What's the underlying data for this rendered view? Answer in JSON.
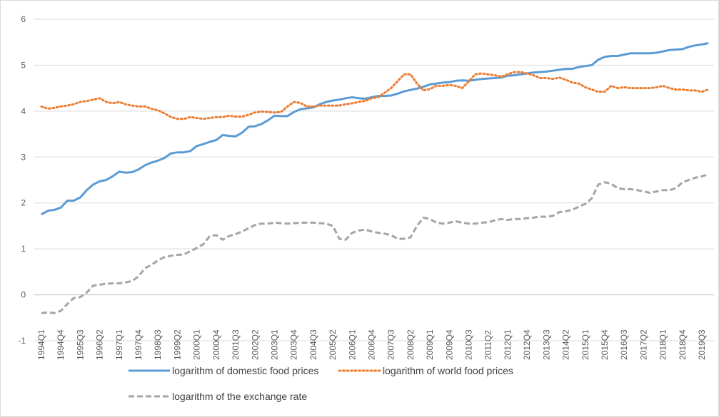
{
  "chart_data": {
    "type": "line",
    "categories": [
      "1994Q1",
      null,
      null,
      "1994Q4",
      null,
      null,
      "1995Q3",
      null,
      null,
      "1996Q2",
      null,
      null,
      "1997Q1",
      null,
      null,
      "1997Q4",
      null,
      null,
      "1998Q3",
      null,
      null,
      "1999Q2",
      null,
      null,
      "2000Q1",
      null,
      null,
      "2000Q4",
      null,
      null,
      "2001Q3",
      null,
      null,
      "2002Q2",
      null,
      null,
      "2003Q1",
      null,
      null,
      "2003Q4",
      null,
      null,
      "2004Q3",
      null,
      null,
      "2005Q2",
      null,
      null,
      "2006Q1",
      null,
      null,
      "2006Q4",
      null,
      null,
      "2007Q3",
      null,
      null,
      "2008Q2",
      null,
      null,
      "2009Q1",
      null,
      null,
      "2009Q4",
      null,
      null,
      "2010Q3",
      null,
      null,
      "2011Q2",
      null,
      null,
      "2012Q1",
      null,
      null,
      "2012Q4",
      null,
      null,
      "2013Q3",
      null,
      null,
      "2014Q2",
      null,
      null,
      "2015Q1",
      null,
      null,
      "2015Q4",
      null,
      null,
      "2016Q3",
      null,
      null,
      "2017Q2",
      null,
      null,
      "2018Q1",
      null,
      null,
      "2018Q4",
      null,
      null,
      "2019Q3",
      null
    ],
    "series": [
      {
        "name": "logarithm of domestic food prices",
        "color": "#5b9bd5",
        "style": "solid",
        "values": [
          1.75,
          1.83,
          1.85,
          1.9,
          2.05,
          2.05,
          2.12,
          2.28,
          2.4,
          2.47,
          2.5,
          2.58,
          2.68,
          2.66,
          2.67,
          2.73,
          2.82,
          2.88,
          2.92,
          2.98,
          3.08,
          3.1,
          3.1,
          3.13,
          3.24,
          3.28,
          3.33,
          3.37,
          3.48,
          3.46,
          3.45,
          3.53,
          3.66,
          3.67,
          3.72,
          3.8,
          3.9,
          3.89,
          3.89,
          3.98,
          4.04,
          4.06,
          4.08,
          4.15,
          4.2,
          4.23,
          4.25,
          4.28,
          4.3,
          4.28,
          4.27,
          4.3,
          4.33,
          4.33,
          4.34,
          4.38,
          4.43,
          4.46,
          4.49,
          4.53,
          4.58,
          4.6,
          4.62,
          4.63,
          4.66,
          4.67,
          4.66,
          4.68,
          4.7,
          4.71,
          4.72,
          4.73,
          4.77,
          4.78,
          4.8,
          4.82,
          4.84,
          4.85,
          4.86,
          4.88,
          4.9,
          4.92,
          4.92,
          4.96,
          4.98,
          5.0,
          5.12,
          5.18,
          5.2,
          5.2,
          5.23,
          5.26,
          5.26,
          5.26,
          5.26,
          5.27,
          5.3,
          5.33,
          5.34,
          5.35,
          5.4,
          5.43,
          5.45,
          5.48
        ]
      },
      {
        "name": "logarithm of world food prices",
        "color": "#ed7d31",
        "style": "dotted",
        "values": [
          4.1,
          4.05,
          4.07,
          4.1,
          4.12,
          4.15,
          4.2,
          4.22,
          4.25,
          4.28,
          4.2,
          4.17,
          4.2,
          4.15,
          4.12,
          4.1,
          4.1,
          4.05,
          4.02,
          3.95,
          3.87,
          3.83,
          3.83,
          3.87,
          3.85,
          3.83,
          3.85,
          3.87,
          3.87,
          3.9,
          3.88,
          3.88,
          3.92,
          3.97,
          3.99,
          3.98,
          3.97,
          3.98,
          4.1,
          4.2,
          4.18,
          4.1,
          4.1,
          4.12,
          4.12,
          4.12,
          4.12,
          4.15,
          4.17,
          4.2,
          4.22,
          4.28,
          4.3,
          4.4,
          4.5,
          4.65,
          4.8,
          4.8,
          4.6,
          4.45,
          4.48,
          4.55,
          4.55,
          4.57,
          4.55,
          4.5,
          4.65,
          4.8,
          4.82,
          4.8,
          4.78,
          4.75,
          4.8,
          4.85,
          4.85,
          4.82,
          4.78,
          4.72,
          4.72,
          4.7,
          4.73,
          4.68,
          4.62,
          4.6,
          4.52,
          4.47,
          4.42,
          4.42,
          4.55,
          4.5,
          4.52,
          4.5,
          4.5,
          4.5,
          4.5,
          4.52,
          4.55,
          4.5,
          4.47,
          4.47,
          4.45,
          4.45,
          4.42,
          4.47
        ]
      },
      {
        "name": "logarithm of the exchange rate",
        "color": "#a5a5a5",
        "style": "dashed",
        "values": [
          -0.4,
          -0.38,
          -0.4,
          -0.35,
          -0.2,
          -0.07,
          -0.05,
          0.05,
          0.2,
          0.22,
          0.24,
          0.25,
          0.25,
          0.27,
          0.3,
          0.4,
          0.58,
          0.65,
          0.75,
          0.82,
          0.85,
          0.87,
          0.88,
          0.95,
          1.02,
          1.1,
          1.28,
          1.3,
          1.2,
          1.28,
          1.32,
          1.38,
          1.45,
          1.52,
          1.55,
          1.55,
          1.57,
          1.56,
          1.55,
          1.56,
          1.57,
          1.57,
          1.57,
          1.56,
          1.55,
          1.5,
          1.22,
          1.2,
          1.35,
          1.4,
          1.42,
          1.38,
          1.35,
          1.33,
          1.3,
          1.22,
          1.22,
          1.25,
          1.5,
          1.68,
          1.65,
          1.57,
          1.55,
          1.57,
          1.6,
          1.57,
          1.55,
          1.55,
          1.57,
          1.58,
          1.62,
          1.65,
          1.63,
          1.65,
          1.65,
          1.67,
          1.68,
          1.7,
          1.7,
          1.72,
          1.8,
          1.82,
          1.85,
          1.92,
          1.98,
          2.1,
          2.4,
          2.45,
          2.42,
          2.32,
          2.3,
          2.3,
          2.28,
          2.25,
          2.22,
          2.25,
          2.28,
          2.28,
          2.32,
          2.45,
          2.5,
          2.55,
          2.58,
          2.62
        ]
      }
    ],
    "ylim": [
      -1,
      6
    ],
    "yticks": [
      -1,
      0,
      1,
      2,
      3,
      4,
      5,
      6
    ],
    "grid": true
  }
}
